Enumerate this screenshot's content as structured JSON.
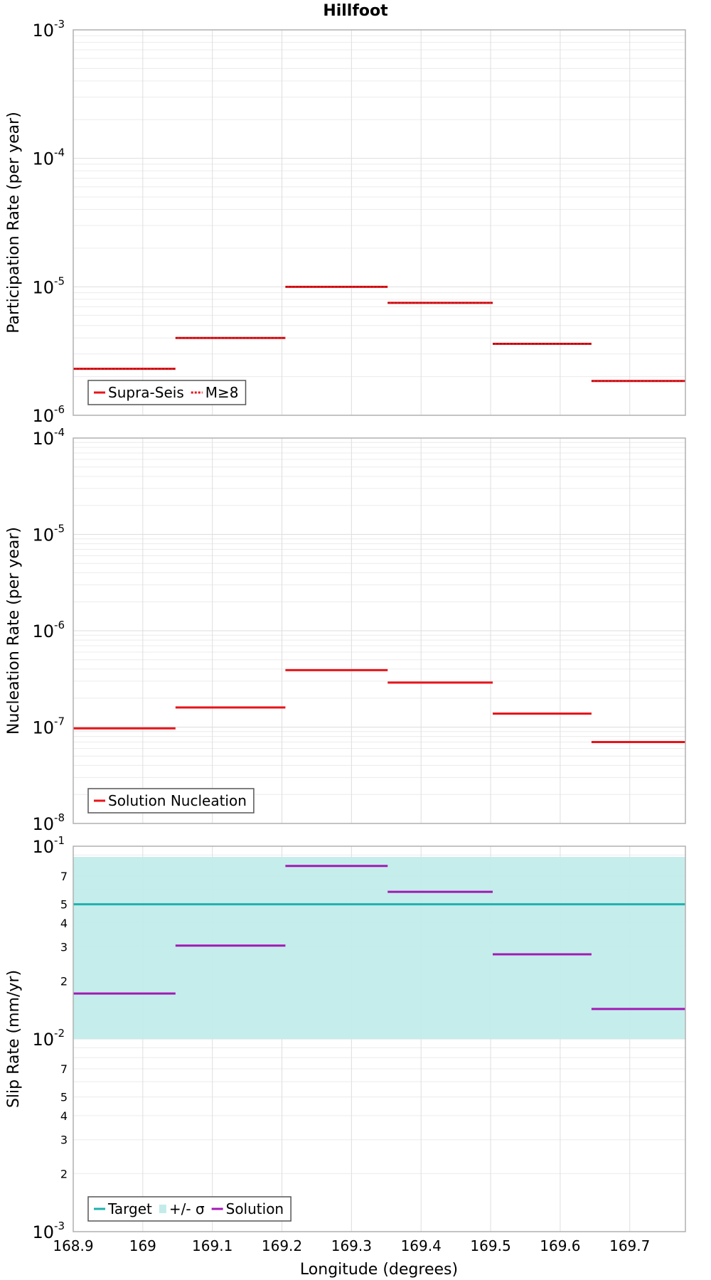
{
  "title": "Hillfoot",
  "xlabel": "Longitude (degrees)",
  "colors": {
    "supra": "#e8141a",
    "target": "#1fb0ae",
    "sigma": "#c2ecea",
    "solution": "#a21ab4",
    "grid_major": "#dedede",
    "grid_minor": "#ececec"
  },
  "chart_data": [
    {
      "type": "line",
      "panel": "participation",
      "ylabel": "Participation Rate (per year)",
      "y_scale": "log",
      "ylim": [
        1e-06,
        0.001
      ],
      "xlim": [
        168.9,
        169.78
      ],
      "xticks": [
        "168.9",
        "169",
        "169.1",
        "169.2",
        "169.3",
        "169.4",
        "169.5",
        "169.6",
        "169.7"
      ],
      "ytick_labels": [
        {
          "base": "10",
          "exp": "-6",
          "value": 1e-06
        },
        {
          "base": "10",
          "exp": "-5",
          "value": 1e-05
        },
        {
          "base": "10",
          "exp": "-4",
          "value": 0.0001
        },
        {
          "base": "10",
          "exp": "-3",
          "value": 0.001
        }
      ],
      "grid": true,
      "legend": {
        "placement": "bottom-left",
        "entries": [
          "Supra-Seis",
          "M≥8"
        ]
      },
      "series": [
        {
          "name": "Supra-Seis",
          "style": "solid",
          "segments": [
            {
              "x0": 168.9,
              "x1": 169.047,
              "y": 2.3e-06
            },
            {
              "x0": 169.047,
              "x1": 169.205,
              "y": 4e-06
            },
            {
              "x0": 169.205,
              "x1": 169.352,
              "y": 1e-05
            },
            {
              "x0": 169.352,
              "x1": 169.503,
              "y": 7.5e-06
            },
            {
              "x0": 169.503,
              "x1": 169.645,
              "y": 3.6e-06
            },
            {
              "x0": 169.645,
              "x1": 169.78,
              "y": 1.85e-06
            }
          ]
        },
        {
          "name": "M≥8",
          "style": "dotted",
          "segments": [
            {
              "x0": 168.9,
              "x1": 169.047,
              "y": 2.3e-06
            },
            {
              "x0": 169.047,
              "x1": 169.205,
              "y": 4e-06
            },
            {
              "x0": 169.205,
              "x1": 169.352,
              "y": 1e-05
            },
            {
              "x0": 169.352,
              "x1": 169.503,
              "y": 7.5e-06
            },
            {
              "x0": 169.503,
              "x1": 169.645,
              "y": 3.6e-06
            },
            {
              "x0": 169.645,
              "x1": 169.78,
              "y": 1.85e-06
            }
          ]
        }
      ]
    },
    {
      "type": "line",
      "panel": "nucleation",
      "ylabel": "Nucleation Rate (per year)",
      "y_scale": "log",
      "ylim": [
        1e-08,
        0.0001
      ],
      "xlim": [
        168.9,
        169.78
      ],
      "xticks": [
        "168.9",
        "169",
        "169.1",
        "169.2",
        "169.3",
        "169.4",
        "169.5",
        "169.6",
        "169.7"
      ],
      "ytick_labels": [
        {
          "base": "10",
          "exp": "-8",
          "value": 1e-08
        },
        {
          "base": "10",
          "exp": "-7",
          "value": 1e-07
        },
        {
          "base": "10",
          "exp": "-6",
          "value": 1e-06
        },
        {
          "base": "10",
          "exp": "-5",
          "value": 1e-05
        },
        {
          "base": "10",
          "exp": "-4",
          "value": 0.0001
        }
      ],
      "grid": true,
      "legend": {
        "placement": "bottom-left",
        "entries": [
          "Solution Nucleation"
        ]
      },
      "series": [
        {
          "name": "Solution Nucleation",
          "style": "solid",
          "segments": [
            {
              "x0": 168.9,
              "x1": 169.047,
              "y": 9.7e-08
            },
            {
              "x0": 169.047,
              "x1": 169.205,
              "y": 1.6e-07
            },
            {
              "x0": 169.205,
              "x1": 169.352,
              "y": 3.9e-07
            },
            {
              "x0": 169.352,
              "x1": 169.503,
              "y": 2.9e-07
            },
            {
              "x0": 169.503,
              "x1": 169.645,
              "y": 1.38e-07
            },
            {
              "x0": 169.645,
              "x1": 169.78,
              "y": 7e-08
            }
          ]
        }
      ]
    },
    {
      "type": "line",
      "panel": "slip",
      "ylabel": "Slip Rate (mm/yr)",
      "y_scale": "log",
      "ylim": [
        0.001,
        0.1
      ],
      "xlim": [
        168.9,
        169.78
      ],
      "xticks": [
        "168.9",
        "169",
        "169.1",
        "169.2",
        "169.3",
        "169.4",
        "169.5",
        "169.6",
        "169.7"
      ],
      "ytick_labels": [
        {
          "base": "10",
          "exp": "-3",
          "value": 0.001
        },
        {
          "base": "10",
          "exp": "-2",
          "value": 0.01
        },
        {
          "base": "10",
          "exp": "-1",
          "value": 0.1
        }
      ],
      "minor_tick_labels": [
        {
          "label": "2",
          "value": 0.002
        },
        {
          "label": "3",
          "value": 0.003
        },
        {
          "label": "4",
          "value": 0.004
        },
        {
          "label": "5",
          "value": 0.005
        },
        {
          "label": "7",
          "value": 0.007
        },
        {
          "label": "2",
          "value": 0.02
        },
        {
          "label": "3",
          "value": 0.03
        },
        {
          "label": "4",
          "value": 0.04
        },
        {
          "label": "5",
          "value": 0.05
        },
        {
          "label": "7",
          "value": 0.07
        }
      ],
      "grid": true,
      "legend": {
        "placement": "bottom-left",
        "entries": [
          "Target",
          "+/- σ",
          "Solution"
        ]
      },
      "band": {
        "name": "+/- σ",
        "y0": 0.01,
        "y1": 0.088
      },
      "series": [
        {
          "name": "Target",
          "style": "solid",
          "segments": [
            {
              "x0": 168.9,
              "x1": 169.78,
              "y": 0.05
            }
          ]
        },
        {
          "name": "Solution",
          "style": "solid",
          "segments": [
            {
              "x0": 168.9,
              "x1": 169.047,
              "y": 0.0172
            },
            {
              "x0": 169.047,
              "x1": 169.205,
              "y": 0.0305
            },
            {
              "x0": 169.205,
              "x1": 169.352,
              "y": 0.079
            },
            {
              "x0": 169.352,
              "x1": 169.503,
              "y": 0.058
            },
            {
              "x0": 169.503,
              "x1": 169.645,
              "y": 0.0275
            },
            {
              "x0": 169.645,
              "x1": 169.78,
              "y": 0.0143
            }
          ]
        }
      ]
    }
  ]
}
